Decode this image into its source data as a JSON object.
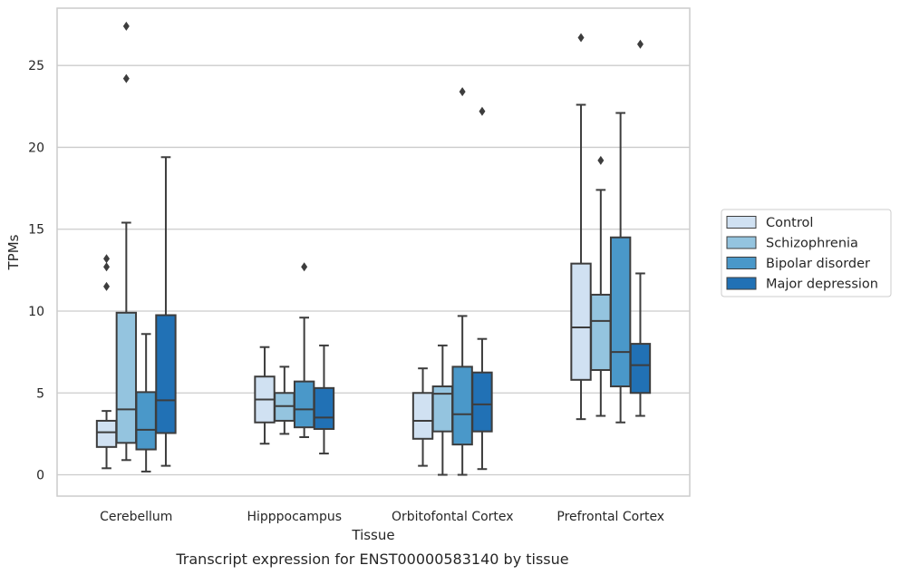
{
  "chart_data": {
    "type": "boxplot",
    "caption": "Transcript expression for ENST00000583140 by tissue",
    "xlabel": "Tissue",
    "ylabel": "TPMs",
    "ylim": [
      -1.3,
      28.5
    ],
    "yticks": [
      0,
      5,
      10,
      15,
      20,
      25
    ],
    "grid": "horizontal",
    "legend_position": "right",
    "categories": [
      "Cerebellum",
      "Hipppocampus",
      "Orbitofontal Cortex",
      "Prefrontal Cortex"
    ],
    "series": [
      {
        "name": "Control",
        "color": "#d0e1f2",
        "boxes": [
          {
            "whisker_low": 0.4,
            "q1": 1.7,
            "median": 2.6,
            "q3": 3.3,
            "whisker_high": 3.9,
            "outliers": [
              11.5,
              12.7,
              13.2
            ]
          },
          {
            "whisker_low": 1.9,
            "q1": 3.2,
            "median": 4.6,
            "q3": 6.0,
            "whisker_high": 7.8,
            "outliers": []
          },
          {
            "whisker_low": 0.55,
            "q1": 2.2,
            "median": 3.3,
            "q3": 5.0,
            "whisker_high": 6.5,
            "outliers": []
          },
          {
            "whisker_low": 3.4,
            "q1": 5.8,
            "median": 9.0,
            "q3": 12.9,
            "whisker_high": 22.6,
            "outliers": [
              26.7
            ]
          }
        ]
      },
      {
        "name": "Schizophrenia",
        "color": "#94c4df",
        "boxes": [
          {
            "whisker_low": 0.9,
            "q1": 1.95,
            "median": 4.0,
            "q3": 9.9,
            "whisker_high": 15.4,
            "outliers": [
              24.2,
              27.4
            ]
          },
          {
            "whisker_low": 2.5,
            "q1": 3.3,
            "median": 4.2,
            "q3": 5.0,
            "whisker_high": 6.6,
            "outliers": []
          },
          {
            "whisker_low": 0.0,
            "q1": 2.65,
            "median": 4.95,
            "q3": 5.4,
            "whisker_high": 7.9,
            "outliers": []
          },
          {
            "whisker_low": 3.6,
            "q1": 6.4,
            "median": 9.4,
            "q3": 11.0,
            "whisker_high": 17.4,
            "outliers": [
              19.2
            ]
          }
        ]
      },
      {
        "name": "Bipolar disorder",
        "color": "#4a98c9",
        "boxes": [
          {
            "whisker_low": 0.2,
            "q1": 1.55,
            "median": 2.75,
            "q3": 5.05,
            "whisker_high": 8.6,
            "outliers": []
          },
          {
            "whisker_low": 2.3,
            "q1": 2.9,
            "median": 4.0,
            "q3": 5.7,
            "whisker_high": 9.6,
            "outliers": [
              12.7
            ]
          },
          {
            "whisker_low": 0.0,
            "q1": 1.85,
            "median": 3.7,
            "q3": 6.6,
            "whisker_high": 9.7,
            "outliers": [
              23.4
            ]
          },
          {
            "whisker_low": 3.2,
            "q1": 5.4,
            "median": 7.5,
            "q3": 14.5,
            "whisker_high": 22.1,
            "outliers": []
          }
        ]
      },
      {
        "name": "Major depression",
        "color": "#2171b5",
        "boxes": [
          {
            "whisker_low": 0.55,
            "q1": 2.55,
            "median": 4.55,
            "q3": 9.75,
            "whisker_high": 19.4,
            "outliers": []
          },
          {
            "whisker_low": 1.3,
            "q1": 2.8,
            "median": 3.5,
            "q3": 5.3,
            "whisker_high": 7.9,
            "outliers": []
          },
          {
            "whisker_low": 0.35,
            "q1": 2.65,
            "median": 4.3,
            "q3": 6.25,
            "whisker_high": 8.3,
            "outliers": [
              22.2
            ]
          },
          {
            "whisker_low": 3.6,
            "q1": 5.0,
            "median": 6.7,
            "q3": 8.0,
            "whisker_high": 12.3,
            "outliers": [
              26.3
            ]
          }
        ]
      }
    ]
  }
}
